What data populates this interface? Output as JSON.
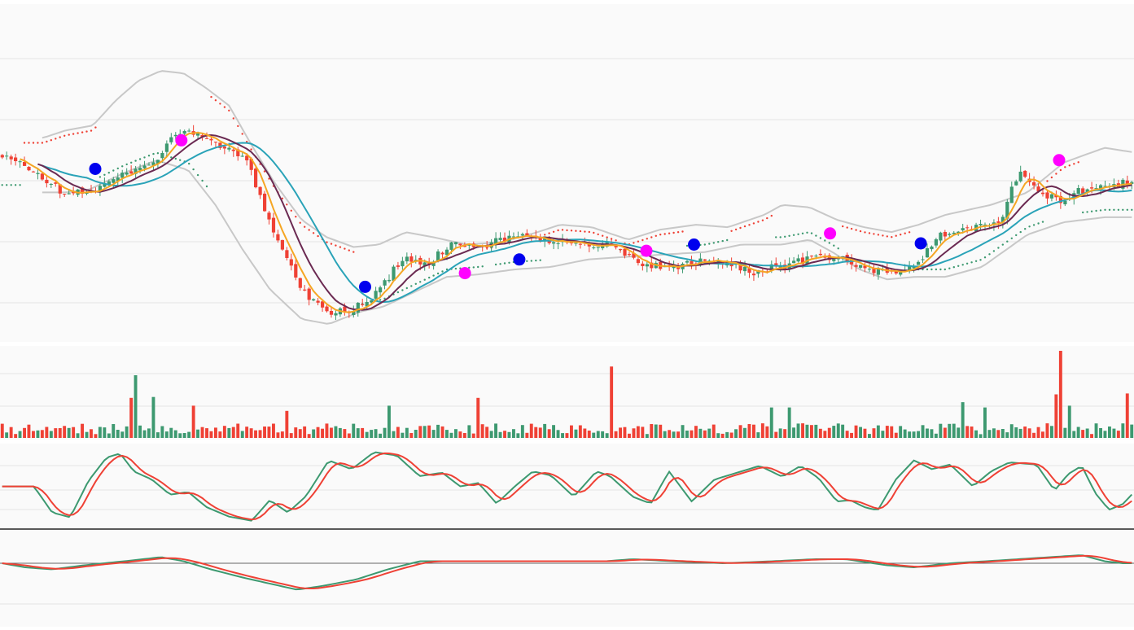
{
  "colors": {
    "up": "#3d9970",
    "down": "#ef4135",
    "bollinger": "#c8c8c8",
    "ma_fast": "#f5a623",
    "ma_mid": "#6b2a52",
    "ma_slow": "#2aa3b8",
    "sar_bear": "#ef4135",
    "sar_bull": "#3d9970",
    "signal_buy": "#0000ee",
    "signal_sell": "#ff00ff",
    "osc_main": "#3d9970",
    "osc_signal": "#ef4135",
    "grid": "#e4e4e4",
    "panel_bg": "#fafafa",
    "separator": "#222222"
  },
  "chart_data": [
    {
      "type": "candlestick",
      "panel": "price",
      "grid": true,
      "axis_labels": "none",
      "ylim": [
        0,
        100
      ],
      "n_bars": 255,
      "close_path": [
        [
          0,
          65
        ],
        [
          8,
          63
        ],
        [
          18,
          57
        ],
        [
          28,
          50
        ],
        [
          40,
          52
        ],
        [
          58,
          60
        ],
        [
          70,
          66
        ],
        [
          78,
          76
        ],
        [
          86,
          74
        ],
        [
          96,
          70
        ],
        [
          108,
          63
        ],
        [
          120,
          35
        ],
        [
          132,
          12
        ],
        [
          143,
          3
        ],
        [
          152,
          3
        ],
        [
          164,
          9
        ],
        [
          176,
          24
        ],
        [
          188,
          22
        ],
        [
          198,
          31
        ],
        [
          210,
          29
        ],
        [
          218,
          32
        ],
        [
          230,
          33
        ],
        [
          242,
          32
        ],
        [
          254,
          30
        ],
        [
          266,
          30
        ],
        [
          278,
          24
        ],
        [
          292,
          20
        ],
        [
          306,
          23
        ],
        [
          320,
          23
        ],
        [
          330,
          19
        ],
        [
          342,
          21
        ],
        [
          356,
          24
        ],
        [
          368,
          25
        ],
        [
          380,
          20
        ],
        [
          392,
          19
        ],
        [
          402,
          21
        ],
        [
          414,
          34
        ],
        [
          426,
          36
        ],
        [
          440,
          40
        ],
        [
          448,
          59
        ],
        [
          458,
          50
        ],
        [
          466,
          48
        ],
        [
          476,
          52
        ],
        [
          486,
          54
        ],
        [
          500,
          55
        ]
      ],
      "upper_band_path": [
        [
          18,
          73
        ],
        [
          28,
          76
        ],
        [
          40,
          78
        ],
        [
          50,
          88
        ],
        [
          60,
          96
        ],
        [
          70,
          100
        ],
        [
          80,
          99
        ],
        [
          90,
          93
        ],
        [
          100,
          86
        ],
        [
          110,
          70
        ],
        [
          120,
          55
        ],
        [
          132,
          40
        ],
        [
          143,
          33
        ],
        [
          155,
          29
        ],
        [
          166,
          30
        ],
        [
          178,
          35
        ],
        [
          190,
          33
        ],
        [
          205,
          30
        ],
        [
          220,
          31
        ],
        [
          236,
          35
        ],
        [
          246,
          38
        ],
        [
          260,
          37
        ],
        [
          276,
          32
        ],
        [
          290,
          36
        ],
        [
          306,
          38
        ],
        [
          320,
          37
        ],
        [
          336,
          42
        ],
        [
          344,
          46
        ],
        [
          356,
          45
        ],
        [
          368,
          40
        ],
        [
          380,
          37
        ],
        [
          392,
          35
        ],
        [
          404,
          38
        ],
        [
          416,
          42
        ],
        [
          436,
          46
        ],
        [
          452,
          51
        ],
        [
          468,
          63
        ],
        [
          486,
          69
        ],
        [
          500,
          67
        ]
      ],
      "lower_band_path": [
        [
          18,
          51
        ],
        [
          28,
          51
        ],
        [
          38,
          52
        ],
        [
          54,
          59
        ],
        [
          68,
          64
        ],
        [
          82,
          60
        ],
        [
          94,
          46
        ],
        [
          106,
          28
        ],
        [
          118,
          12
        ],
        [
          132,
          0
        ],
        [
          144,
          -2
        ],
        [
          158,
          3
        ],
        [
          168,
          5
        ],
        [
          182,
          11
        ],
        [
          196,
          17
        ],
        [
          210,
          18
        ],
        [
          226,
          20
        ],
        [
          242,
          21
        ],
        [
          258,
          24
        ],
        [
          274,
          25
        ],
        [
          292,
          26
        ],
        [
          310,
          27
        ],
        [
          326,
          30
        ],
        [
          344,
          30
        ],
        [
          356,
          32
        ],
        [
          366,
          27
        ],
        [
          378,
          20
        ],
        [
          390,
          16
        ],
        [
          402,
          17
        ],
        [
          416,
          17
        ],
        [
          432,
          21
        ],
        [
          452,
          34
        ],
        [
          468,
          39
        ],
        [
          486,
          41
        ],
        [
          500,
          41
        ]
      ],
      "indicator_periods": {
        "ma_fast": 5,
        "ma_mid": 10,
        "ma_slow": 20,
        "bollinger": 20
      },
      "signals": [
        {
          "type": "buy",
          "x_bar": 41,
          "price": 60.5
        },
        {
          "type": "sell",
          "x_bar": 79,
          "price": 72
        },
        {
          "type": "buy",
          "x_bar": 160,
          "price": 13
        },
        {
          "type": "sell",
          "x_bar": 204,
          "price": 18.5
        },
        {
          "type": "buy",
          "x_bar": 228,
          "price": 24
        },
        {
          "type": "sell",
          "x_bar": 284,
          "price": 27.5
        },
        {
          "type": "buy",
          "x_bar": 305,
          "price": 30
        },
        {
          "type": "sell",
          "x_bar": 365,
          "price": 34.5
        },
        {
          "type": "buy",
          "x_bar": 405,
          "price": 30.5
        },
        {
          "type": "sell",
          "x_bar": 466,
          "price": 64
        }
      ]
    },
    {
      "type": "bar",
      "panel": "volume",
      "grid": true,
      "axis_labels": "none",
      "ylim": [
        0,
        100
      ],
      "base_level": 12,
      "spikes": [
        {
          "x_bar": 56,
          "value": 46
        },
        {
          "x_bar": 58,
          "value": 100
        },
        {
          "x_bar": 59,
          "value": 72
        },
        {
          "x_bar": 66,
          "value": 49
        },
        {
          "x_bar": 67,
          "value": 47
        },
        {
          "x_bar": 85,
          "value": 37
        },
        {
          "x_bar": 126,
          "value": 31
        },
        {
          "x_bar": 170,
          "value": 37
        },
        {
          "x_bar": 209,
          "value": 46
        },
        {
          "x_bar": 268,
          "value": 82
        },
        {
          "x_bar": 340,
          "value": 35
        },
        {
          "x_bar": 347,
          "value": 35
        },
        {
          "x_bar": 424,
          "value": 41
        },
        {
          "x_bar": 434,
          "value": 35
        },
        {
          "x_bar": 465,
          "value": 50
        },
        {
          "x_bar": 467,
          "value": 100
        },
        {
          "x_bar": 470,
          "value": 37
        },
        {
          "x_bar": 496,
          "value": 51
        }
      ]
    },
    {
      "type": "line",
      "panel": "oscillator",
      "grid": true,
      "axis_labels": "none",
      "ylim": [
        -5,
        110
      ],
      "series_colors": [
        "osc_main",
        "osc_signal"
      ],
      "path": [
        [
          0,
          50
        ],
        [
          14,
          50
        ],
        [
          22,
          12
        ],
        [
          30,
          5
        ],
        [
          38,
          58
        ],
        [
          46,
          92
        ],
        [
          52,
          98
        ],
        [
          58,
          72
        ],
        [
          66,
          60
        ],
        [
          74,
          38
        ],
        [
          82,
          42
        ],
        [
          90,
          20
        ],
        [
          100,
          6
        ],
        [
          110,
          0
        ],
        [
          118,
          30
        ],
        [
          126,
          12
        ],
        [
          134,
          36
        ],
        [
          144,
          88
        ],
        [
          154,
          75
        ],
        [
          164,
          100
        ],
        [
          174,
          95
        ],
        [
          184,
          65
        ],
        [
          194,
          70
        ],
        [
          202,
          50
        ],
        [
          210,
          55
        ],
        [
          218,
          25
        ],
        [
          226,
          50
        ],
        [
          234,
          72
        ],
        [
          242,
          66
        ],
        [
          252,
          35
        ],
        [
          262,
          72
        ],
        [
          268,
          65
        ],
        [
          278,
          35
        ],
        [
          286,
          25
        ],
        [
          294,
          72
        ],
        [
          304,
          28
        ],
        [
          314,
          60
        ],
        [
          324,
          70
        ],
        [
          334,
          80
        ],
        [
          344,
          64
        ],
        [
          352,
          80
        ],
        [
          360,
          62
        ],
        [
          368,
          28
        ],
        [
          374,
          30
        ],
        [
          380,
          20
        ],
        [
          386,
          15
        ],
        [
          394,
          60
        ],
        [
          402,
          88
        ],
        [
          410,
          75
        ],
        [
          418,
          82
        ],
        [
          428,
          50
        ],
        [
          436,
          72
        ],
        [
          444,
          85
        ],
        [
          456,
          82
        ],
        [
          464,
          44
        ],
        [
          470,
          68
        ],
        [
          476,
          80
        ],
        [
          482,
          40
        ],
        [
          488,
          16
        ],
        [
          494,
          24
        ],
        [
          500,
          45
        ]
      ]
    },
    {
      "type": "line",
      "panel": "macd",
      "grid": true,
      "axis_labels": "none",
      "ylim": [
        -12,
        12
      ],
      "series_colors": [
        "osc_main",
        "osc_signal"
      ],
      "path": [
        [
          0,
          0
        ],
        [
          10,
          -2
        ],
        [
          22,
          -3
        ],
        [
          36,
          -1
        ],
        [
          54,
          1
        ],
        [
          70,
          3
        ],
        [
          80,
          1
        ],
        [
          92,
          -3
        ],
        [
          106,
          -7
        ],
        [
          118,
          -10
        ],
        [
          130,
          -13
        ],
        [
          142,
          -11
        ],
        [
          156,
          -8
        ],
        [
          170,
          -3
        ],
        [
          184,
          1
        ],
        [
          200,
          1
        ],
        [
          214,
          1
        ],
        [
          230,
          1
        ],
        [
          246,
          1
        ],
        [
          266,
          1
        ],
        [
          278,
          2
        ],
        [
          296,
          1
        ],
        [
          318,
          0
        ],
        [
          340,
          1
        ],
        [
          358,
          2
        ],
        [
          372,
          2
        ],
        [
          390,
          -1
        ],
        [
          402,
          -2
        ],
        [
          418,
          0
        ],
        [
          434,
          1
        ],
        [
          448,
          2
        ],
        [
          462,
          3
        ],
        [
          476,
          4
        ],
        [
          486,
          1
        ],
        [
          494,
          0
        ],
        [
          500,
          0
        ]
      ]
    }
  ]
}
